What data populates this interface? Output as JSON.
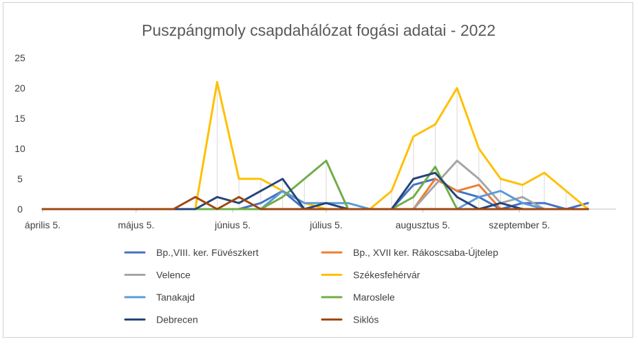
{
  "chart_data": {
    "type": "line",
    "title": "Puszpángmoly csapdahálózat fogási adatai - 2022",
    "xlabel": "",
    "ylabel": "",
    "ylim": [
      0,
      25
    ],
    "yticks": [
      0,
      5,
      10,
      15,
      20,
      25
    ],
    "grid": "vertical drop lines at each week",
    "legend_position": "bottom",
    "x": [
      "2022-04-05",
      "2022-04-12",
      "2022-04-19",
      "2022-04-26",
      "2022-05-03",
      "2022-05-10",
      "2022-05-17",
      "2022-05-24",
      "2022-05-31",
      "2022-06-07",
      "2022-06-14",
      "2022-06-21",
      "2022-06-28",
      "2022-07-05",
      "2022-07-12",
      "2022-07-19",
      "2022-07-26",
      "2022-08-02",
      "2022-08-09",
      "2022-08-16",
      "2022-08-23",
      "2022-08-30",
      "2022-09-06",
      "2022-09-13",
      "2022-09-20",
      "2022-09-27"
    ],
    "xtick_labels": [
      {
        "date": "2022-04-05",
        "label": "április 5."
      },
      {
        "date": "2022-05-05",
        "label": "május 5."
      },
      {
        "date": "2022-06-05",
        "label": "június 5."
      },
      {
        "date": "2022-07-05",
        "label": "július 5."
      },
      {
        "date": "2022-08-05",
        "label": "augusztus 5."
      },
      {
        "date": "2022-09-05",
        "label": "szeptember 5."
      }
    ],
    "series": [
      {
        "name": "Bp.,VIII. ker. Füvészkert",
        "color": "#4472C4",
        "values": [
          0,
          0,
          0,
          0,
          0,
          0,
          0,
          0,
          0,
          0,
          1,
          3,
          0,
          0,
          0,
          0,
          0,
          4,
          5,
          3,
          2,
          0,
          1,
          1,
          0,
          1
        ]
      },
      {
        "name": "Bp., XVII ker. Rákoscsaba-Újtelep",
        "color": "#ED7D31",
        "values": [
          0,
          0,
          0,
          0,
          0,
          0,
          0,
          0,
          0,
          0,
          0,
          0,
          0,
          0,
          0,
          0,
          0,
          0,
          5,
          3,
          4,
          0,
          0,
          0,
          0,
          0
        ]
      },
      {
        "name": "Velence",
        "color": "#A5A5A5",
        "values": [
          0,
          0,
          0,
          0,
          0,
          0,
          0,
          0,
          0,
          0,
          0,
          0,
          0,
          0,
          0,
          0,
          0,
          0,
          4,
          8,
          5,
          1,
          2,
          0,
          0,
          0
        ]
      },
      {
        "name": "Székesfehérvár",
        "color": "#FFC000",
        "values": [
          0,
          0,
          0,
          0,
          0,
          0,
          0,
          0,
          21,
          5,
          5,
          3,
          1,
          0,
          0,
          0,
          3,
          12,
          14,
          20,
          10,
          5,
          4,
          6,
          3,
          0
        ]
      },
      {
        "name": "Tanakajd",
        "color": "#5B9BD5",
        "values": [
          0,
          0,
          0,
          0,
          0,
          0,
          0,
          0,
          0,
          0,
          0,
          3,
          1,
          1,
          1,
          0,
          0,
          0,
          0,
          0,
          2,
          3,
          1,
          0,
          0,
          0
        ]
      },
      {
        "name": "Maroslele",
        "color": "#70AD47",
        "values": [
          0,
          0,
          0,
          0,
          0,
          0,
          0,
          0,
          0,
          0,
          0,
          2,
          5,
          8,
          0,
          0,
          0,
          2,
          7,
          0,
          0,
          0,
          0,
          0,
          0,
          0
        ]
      },
      {
        "name": "Debrecen",
        "color": "#264478",
        "values": [
          0,
          0,
          0,
          0,
          0,
          0,
          0,
          0,
          2,
          1,
          3,
          5,
          0,
          1,
          0,
          0,
          0,
          5,
          6,
          2,
          0,
          1,
          0,
          0,
          0,
          0
        ]
      },
      {
        "name": "Siklós",
        "color": "#9E480E",
        "values": [
          0,
          0,
          0,
          0,
          0,
          0,
          0,
          2,
          0,
          2,
          0,
          0,
          0,
          0,
          0,
          0,
          0,
          0,
          0,
          0,
          0,
          0,
          0,
          0,
          0,
          0
        ]
      }
    ]
  }
}
